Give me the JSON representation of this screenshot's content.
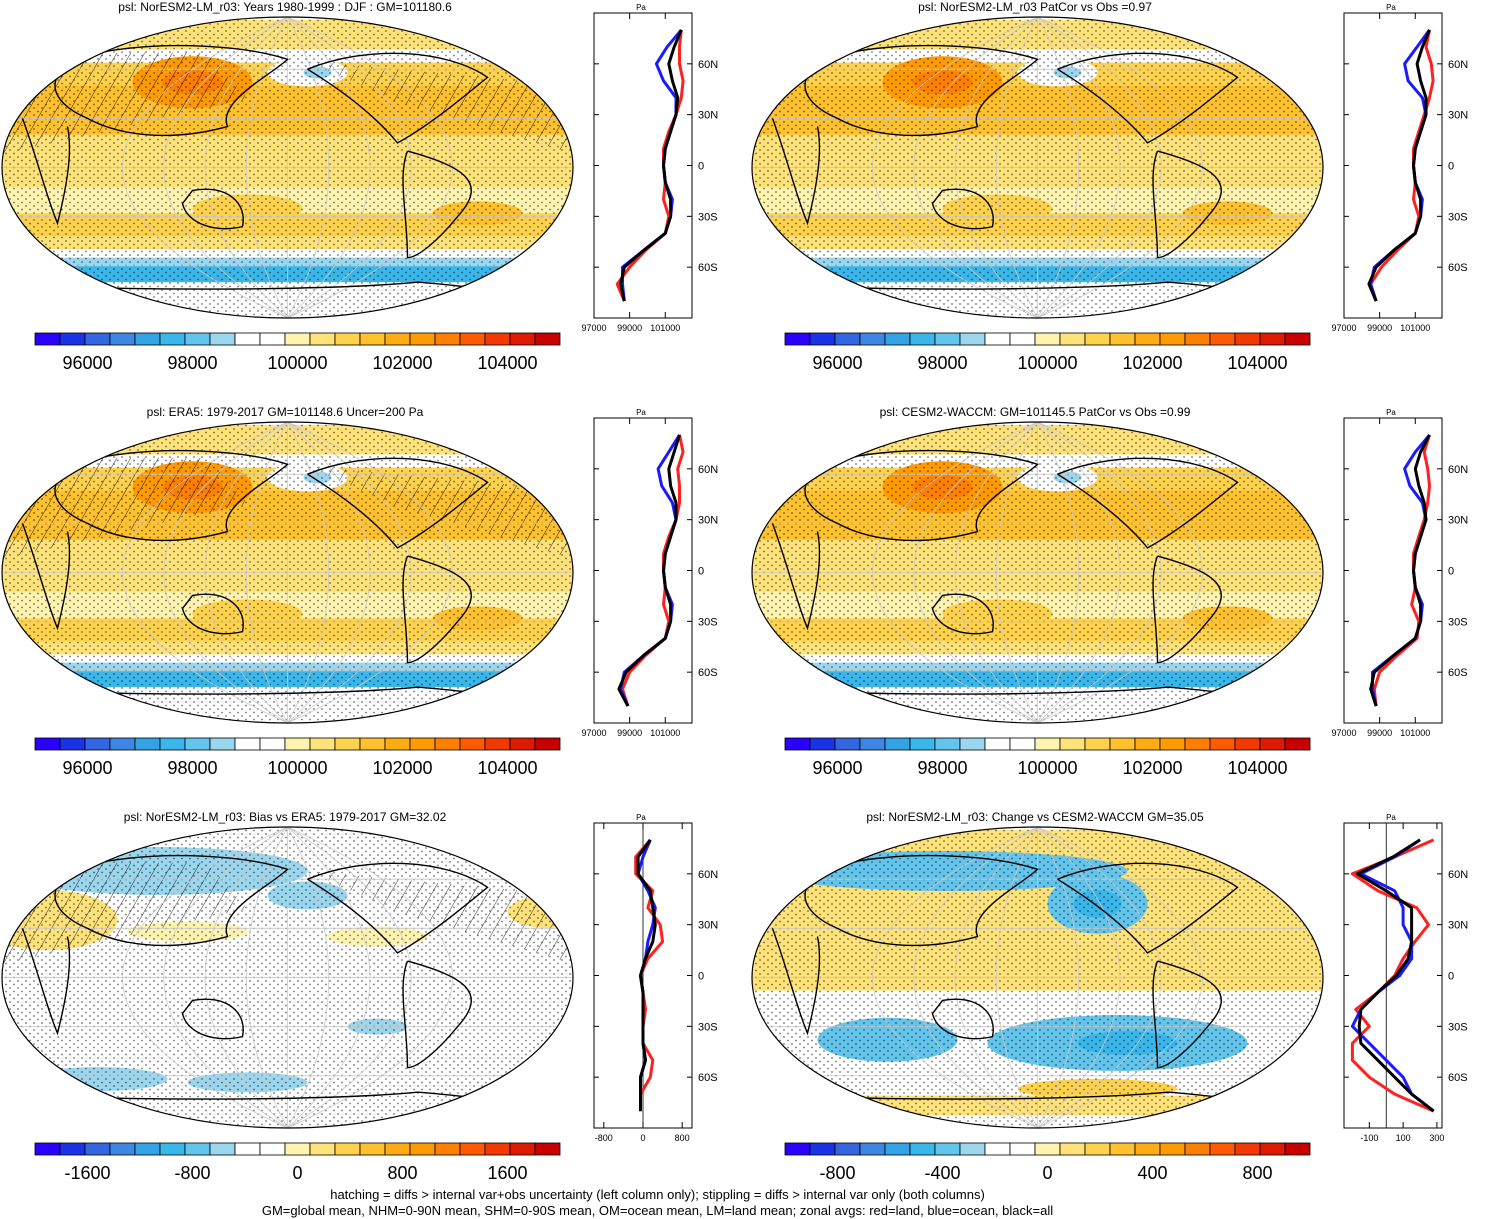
{
  "footer": {
    "line1": "hatching = diffs > internal var+obs uncertainty (left column only); stippling = diffs > internal var only (both columns)",
    "line2": "GM=global mean, NHM=0-90N mean, SHM=0-90S mean, OM=ocean mean, LM=land mean; zonal avgs: red=land, blue=ocean, black=all"
  },
  "colors": {
    "palette": [
      "#2a00ff",
      "#1a33e6",
      "#3366e0",
      "#3e86e3",
      "#33a3e6",
      "#39b6ea",
      "#63c4ec",
      "#9bd6ef",
      "#ffffff",
      "#ffffff",
      "#fff3b0",
      "#ffe27a",
      "#ffd24d",
      "#ffc12e",
      "#ffab14",
      "#ff9a00",
      "#ff7f00",
      "#ff5a00",
      "#f23a00",
      "#de1a00",
      "#c80000"
    ],
    "land": "#ff2020",
    "ocean": "#1a1aff",
    "all": "#000000"
  },
  "chart_data": [
    {
      "type": "map",
      "title": "psl: NorESM2-LM_r03: Years 1980-1999 : DJF : GM=101180.6",
      "colorbar": {
        "labels": [
          "96000",
          "98000",
          "100000",
          "102000",
          "104000"
        ],
        "range": [
          95000,
          105000
        ]
      },
      "zonal": {
        "unit": "Pa",
        "xlim": [
          97000,
          102500
        ],
        "xticks": [
          97000,
          99000,
          101000
        ],
        "xtick_labels": [
          "97000",
          "99000",
          "101000"
        ],
        "yticks": [
          "60N",
          "30N",
          "0",
          "30S",
          "60S"
        ],
        "lat": [
          80,
          70,
          60,
          50,
          40,
          30,
          20,
          10,
          0,
          -10,
          -20,
          -30,
          -40,
          -50,
          -60,
          -70,
          -80
        ],
        "series": [
          {
            "name": "land",
            "values": [
              101900,
              101800,
              101800,
              102000,
              101900,
              101600,
              101200,
              100900,
              100900,
              101000,
              100900,
              101200,
              101000,
              99900,
              99000,
              98300,
              98700
            ]
          },
          {
            "name": "ocean",
            "values": [
              101900,
              101100,
              100500,
              100900,
              101600,
              101600,
              101300,
              101000,
              100900,
              101000,
              101400,
              101300,
              101000,
              99800,
              98600,
              98600,
              98700
            ]
          },
          {
            "name": "all",
            "values": [
              101900,
              101500,
              101200,
              101400,
              101700,
              101600,
              101300,
              101000,
              100900,
              101000,
              101300,
              101300,
              101000,
              99800,
              98700,
              98500,
              98700
            ]
          }
        ]
      }
    },
    {
      "type": "map",
      "title": "psl: NorESM2-LM_r03 PatCor vs Obs =0.97",
      "colorbar": {
        "labels": [
          "96000",
          "98000",
          "100000",
          "102000",
          "104000"
        ],
        "range": [
          95000,
          105000
        ]
      },
      "zonal": {
        "unit": "Pa",
        "xlim": [
          97000,
          102500
        ],
        "xticks": [
          97000,
          99000,
          101000
        ],
        "xtick_labels": [
          "97000",
          "99000",
          "101000"
        ],
        "yticks": [
          "60N",
          "30N",
          "0",
          "30S",
          "60S"
        ],
        "lat": [
          80,
          70,
          60,
          50,
          40,
          30,
          20,
          10,
          0,
          -10,
          -20,
          -30,
          -40,
          -50,
          -60,
          -70,
          -80
        ],
        "series": [
          {
            "name": "land",
            "values": [
              101800,
              101600,
              101900,
              102000,
              101800,
              101500,
              101200,
              100900,
              100900,
              101000,
              100900,
              101200,
              101000,
              100000,
              99100,
              98500,
              98800
            ]
          },
          {
            "name": "ocean",
            "values": [
              101800,
              101100,
              100400,
              100600,
              101400,
              101600,
              101300,
              101000,
              100900,
              101000,
              101400,
              101300,
              101000,
              99800,
              98700,
              98500,
              98800
            ]
          },
          {
            "name": "all",
            "values": [
              101800,
              101400,
              101100,
              101300,
              101600,
              101600,
              101300,
              101000,
              100900,
              101000,
              101300,
              101300,
              101000,
              99800,
              98800,
              98400,
              98800
            ]
          }
        ]
      }
    },
    {
      "type": "map",
      "title": "psl: ERA5: 1979-2017 GM=101148.6 Uncer=200 Pa",
      "colorbar": {
        "labels": [
          "96000",
          "98000",
          "100000",
          "102000",
          "104000"
        ],
        "range": [
          95000,
          105000
        ]
      },
      "zonal": {
        "unit": "Pa",
        "xlim": [
          97000,
          102500
        ],
        "xticks": [
          97000,
          99000,
          101000
        ],
        "xtick_labels": [
          "97000",
          "99000",
          "101000"
        ],
        "yticks": [
          "60N",
          "30N",
          "0",
          "30S",
          "60S"
        ],
        "lat": [
          80,
          70,
          60,
          50,
          40,
          30,
          20,
          10,
          0,
          -10,
          -20,
          -30,
          -40,
          -50,
          -60,
          -70,
          -80
        ],
        "series": [
          {
            "name": "land",
            "values": [
              101800,
              102000,
              101700,
              101800,
              101800,
              101600,
              101200,
              100900,
              100900,
              101000,
              100900,
              101200,
              101000,
              99900,
              99000,
              98600,
              98900
            ]
          },
          {
            "name": "ocean",
            "values": [
              101800,
              101200,
              100600,
              100800,
              101400,
              101600,
              101300,
              101000,
              100900,
              101000,
              101400,
              101300,
              101000,
              99800,
              98700,
              98500,
              98900
            ]
          },
          {
            "name": "all",
            "values": [
              101800,
              101500,
              101200,
              101300,
              101600,
              101600,
              101300,
              101000,
              100900,
              101000,
              101300,
              101300,
              101000,
              99800,
              98800,
              98400,
              98900
            ]
          }
        ]
      }
    },
    {
      "type": "map",
      "title": "psl: CESM2-WACCM: GM=101145.5 PatCor vs Obs =0.99",
      "colorbar": {
        "labels": [
          "96000",
          "98000",
          "100000",
          "102000",
          "104000"
        ],
        "range": [
          95000,
          105000
        ]
      },
      "zonal": {
        "unit": "Pa",
        "xlim": [
          97000,
          102500
        ],
        "xticks": [
          97000,
          99000,
          101000
        ],
        "xtick_labels": [
          "97000",
          "99000",
          "101000"
        ],
        "yticks": [
          "60N",
          "30N",
          "0",
          "30S",
          "60S"
        ],
        "lat": [
          80,
          70,
          60,
          50,
          40,
          30,
          20,
          10,
          0,
          -10,
          -20,
          -30,
          -40,
          -50,
          -60,
          -70,
          -80
        ],
        "series": [
          {
            "name": "land",
            "values": [
              101800,
              101500,
              101700,
              101800,
              101700,
              101500,
              101200,
              100900,
              100900,
              101000,
              100800,
              101200,
              101100,
              100000,
              99000,
              98700,
              98800
            ]
          },
          {
            "name": "ocean",
            "values": [
              101800,
              101000,
              100400,
              100700,
              101400,
              101600,
              101300,
              101000,
              100900,
              101000,
              101400,
              101300,
              101000,
              99800,
              98600,
              98600,
              98800
            ]
          },
          {
            "name": "all",
            "values": [
              101800,
              101300,
              101000,
              101200,
              101500,
              101600,
              101300,
              101000,
              100900,
              101000,
              101300,
              101300,
              101000,
              99800,
              98700,
              98500,
              98800
            ]
          }
        ]
      }
    },
    {
      "type": "map",
      "title": "psl: NorESM2-LM_r03: Bias vs ERA5: 1979-2017 GM=32.02",
      "colorbar": {
        "labels": [
          "-1600",
          "-800",
          "0",
          "800",
          "1600"
        ],
        "range": [
          -2000,
          2000
        ]
      },
      "zonal": {
        "unit": "Pa",
        "xlim": [
          -1000,
          1000
        ],
        "xticks": [
          -800,
          0,
          800
        ],
        "xtick_labels": [
          "-800",
          "0",
          "800"
        ],
        "yticks": [
          "60N",
          "30N",
          "0",
          "30S",
          "60S"
        ],
        "ref_line": 0,
        "lat": [
          80,
          70,
          60,
          50,
          40,
          30,
          20,
          10,
          0,
          -10,
          -20,
          -30,
          -40,
          -50,
          -60,
          -70,
          -80
        ],
        "series": [
          {
            "name": "land",
            "values": [
              150,
              -150,
              -150,
              200,
              100,
              350,
              400,
              100,
              -50,
              0,
              50,
              0,
              0,
              200,
              150,
              -50,
              -50
            ]
          },
          {
            "name": "ocean",
            "values": [
              150,
              0,
              -100,
              100,
              250,
              200,
              100,
              50,
              -50,
              0,
              0,
              0,
              0,
              50,
              -50,
              -50,
              -50
            ]
          },
          {
            "name": "all",
            "values": [
              150,
              -100,
              -100,
              150,
              200,
              250,
              200,
              50,
              -50,
              0,
              0,
              0,
              0,
              50,
              -50,
              -50,
              -50
            ]
          }
        ]
      }
    },
    {
      "type": "map",
      "title": "psl: NorESM2-LM_r03: Change vs CESM2-WACCM GM=35.05",
      "colorbar": {
        "labels": [
          "-800",
          "-400",
          "0",
          "400",
          "800"
        ],
        "range": [
          -1000,
          1000
        ]
      },
      "zonal": {
        "unit": "Pa",
        "xlim": [
          -250,
          330
        ],
        "xticks": [
          -100,
          100,
          300
        ],
        "xtick_labels": [
          "-100",
          "100",
          "300"
        ],
        "yticks": [
          "60N",
          "30N",
          "0",
          "30S",
          "60S"
        ],
        "ref_line": 0,
        "lat": [
          80,
          70,
          60,
          50,
          40,
          30,
          20,
          10,
          0,
          -10,
          -20,
          -30,
          -40,
          -50,
          -60,
          -70,
          -80
        ],
        "series": [
          {
            "name": "land",
            "values": [
              280,
              50,
              -200,
              -50,
              180,
              250,
              170,
              100,
              50,
              -50,
              -180,
              -100,
              -200,
              -200,
              -100,
              50,
              280
            ]
          },
          {
            "name": "ocean",
            "values": [
              200,
              50,
              -150,
              50,
              100,
              100,
              150,
              150,
              80,
              -50,
              -150,
              -200,
              -100,
              0,
              100,
              150,
              280
            ]
          },
          {
            "name": "all",
            "values": [
              200,
              40,
              -170,
              0,
              150,
              150,
              150,
              130,
              60,
              -50,
              -150,
              -160,
              -150,
              -50,
              50,
              150,
              280
            ]
          }
        ]
      }
    }
  ]
}
